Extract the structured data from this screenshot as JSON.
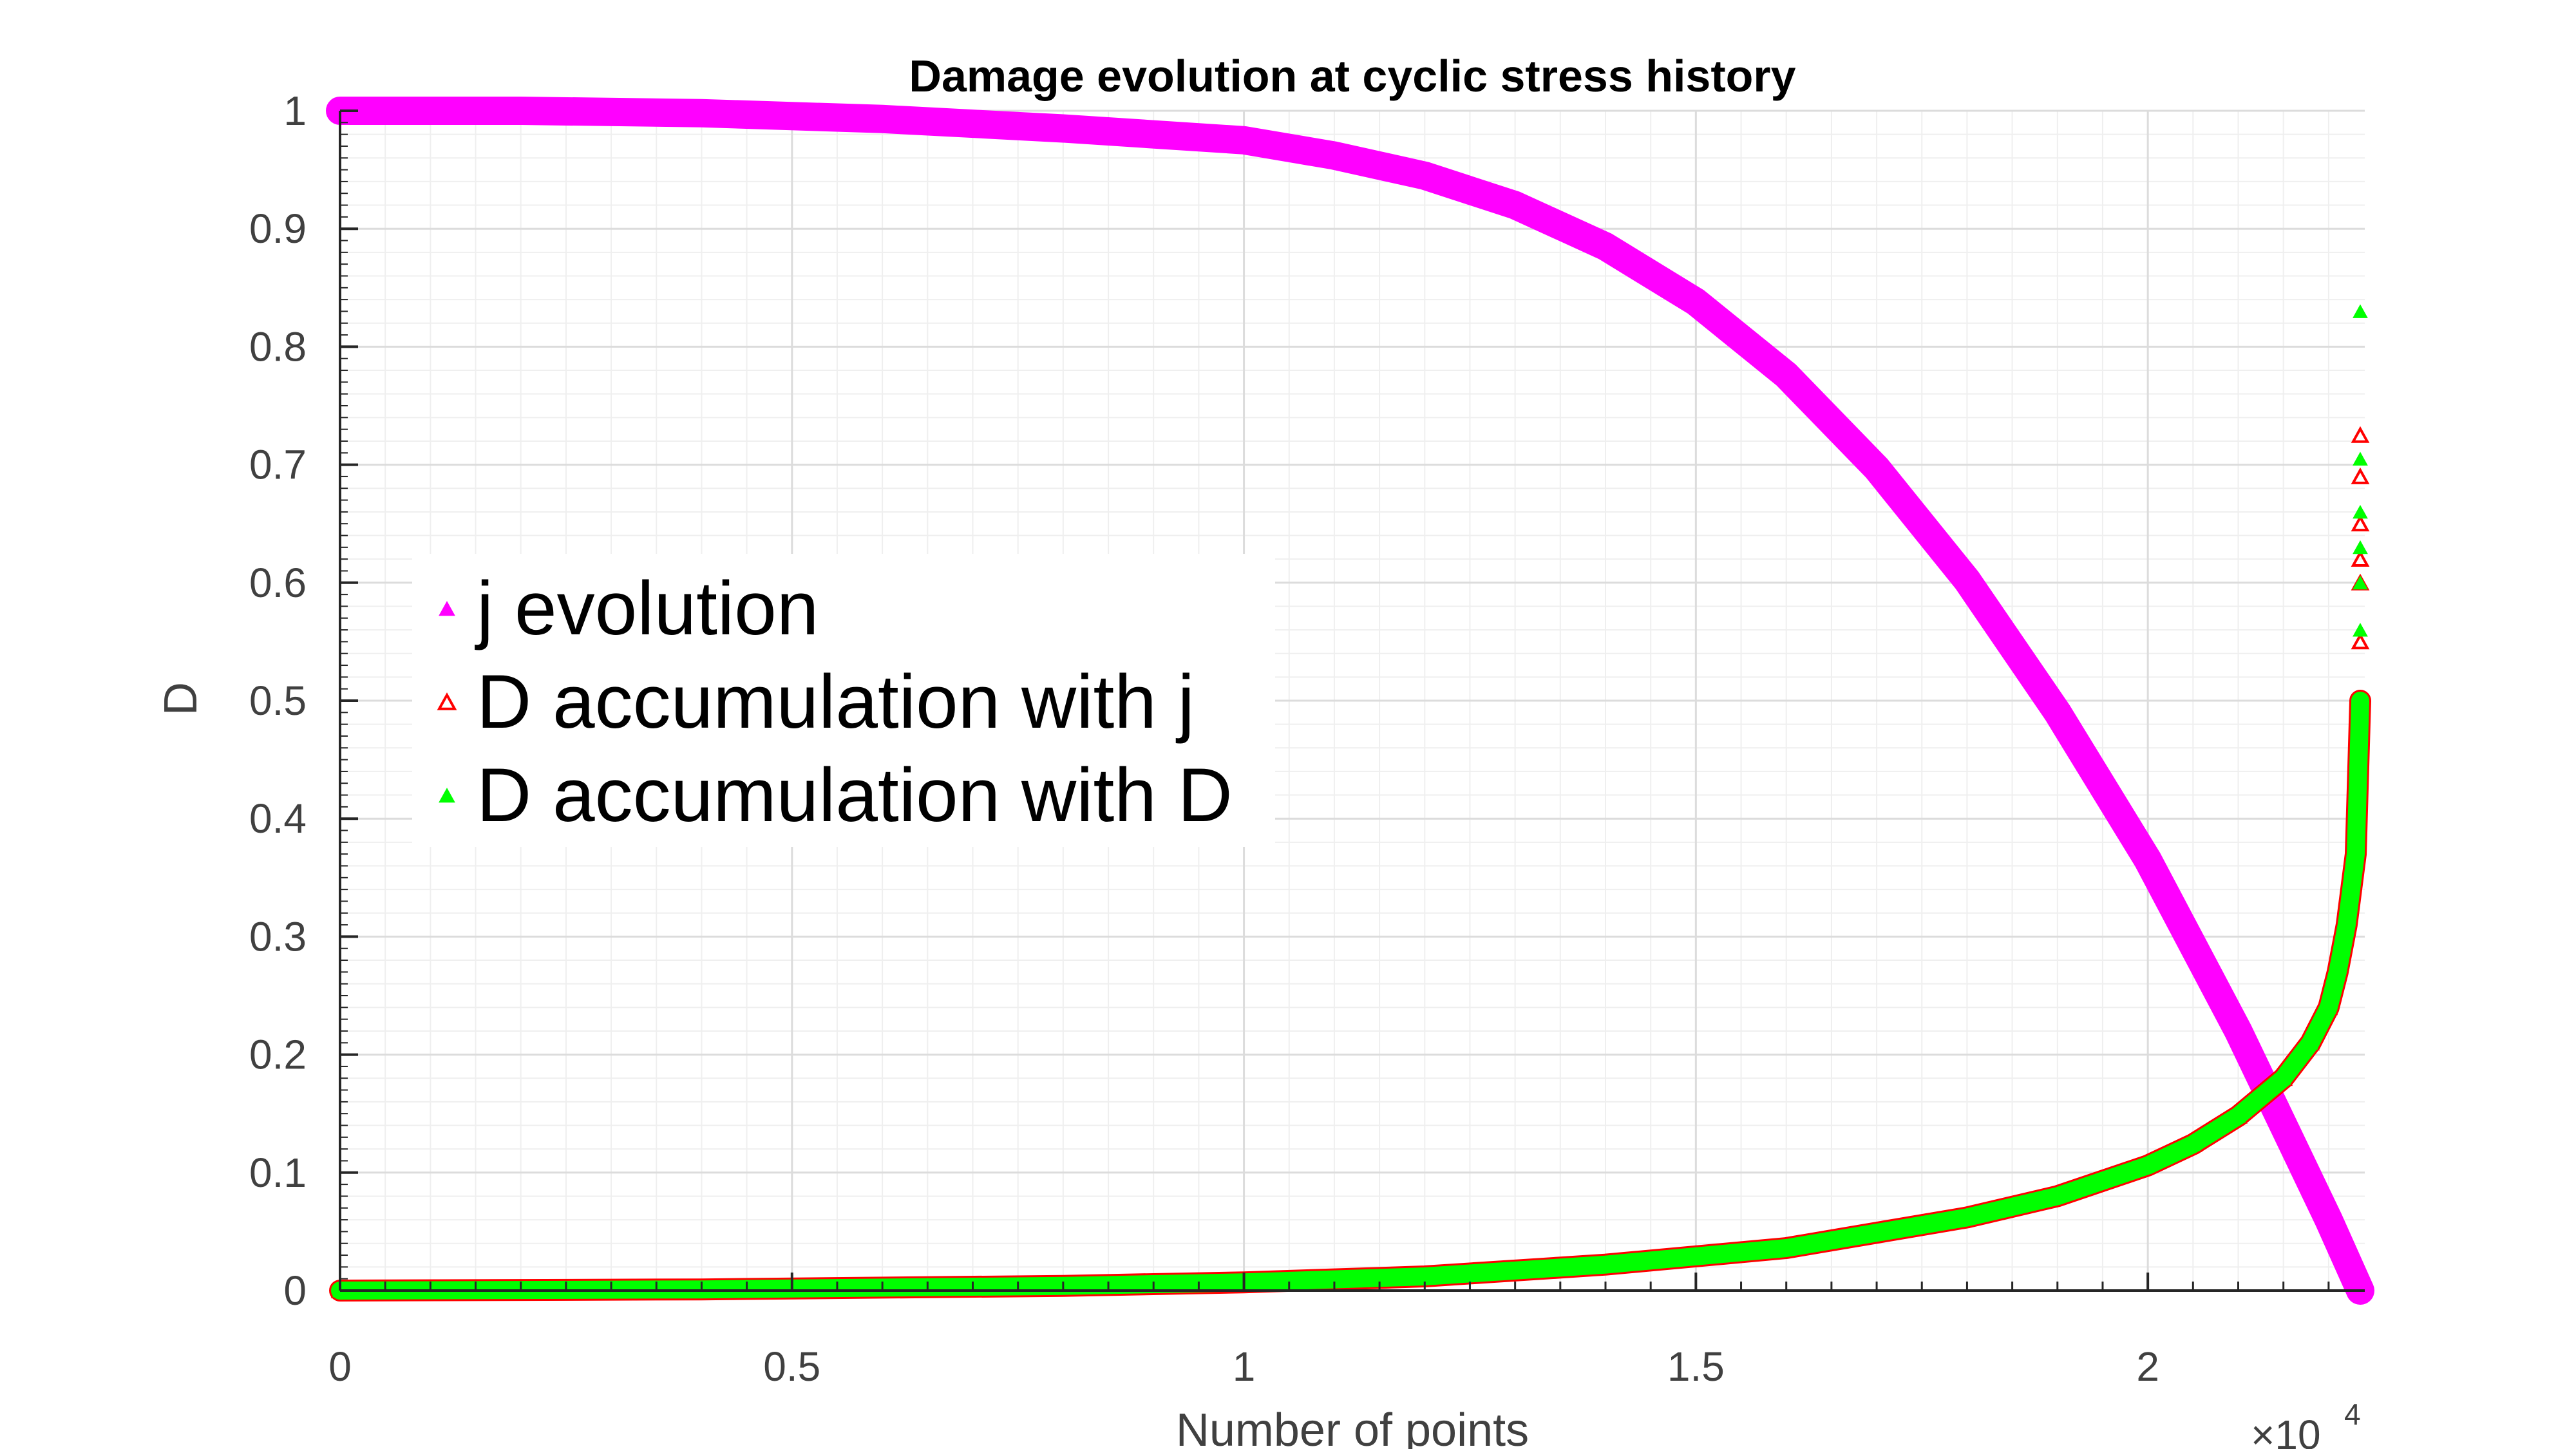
{
  "chart_data": {
    "type": "scatter",
    "title": "Damage evolution at cyclic stress history",
    "xlabel": "Number of points",
    "ylabel": "D",
    "x_multiplier": "×10",
    "x_multiplier_exponent": "4",
    "xlim": [
      0,
      2.24
    ],
    "ylim": [
      0,
      1
    ],
    "x_ticks": [
      0,
      0.5,
      1,
      1.5,
      2
    ],
    "x_tick_labels": [
      "0",
      "0.5",
      "1",
      "1.5",
      "2"
    ],
    "y_ticks": [
      0,
      0.1,
      0.2,
      0.3,
      0.4,
      0.5,
      0.6,
      0.7,
      0.8,
      0.9,
      1
    ],
    "y_tick_labels": [
      "0",
      "0.1",
      "0.2",
      "0.3",
      "0.4",
      "0.5",
      "0.6",
      "0.7",
      "0.8",
      "0.9",
      "1"
    ],
    "grid": true,
    "minor_grid": true,
    "legend_position": "middle-left",
    "series": [
      {
        "name": "j evolution",
        "color": "#ff00ff",
        "marker": "filled-triangle",
        "x": [
          0,
          0.2,
          0.4,
          0.6,
          0.8,
          1.0,
          1.1,
          1.2,
          1.3,
          1.4,
          1.5,
          1.6,
          1.7,
          1.8,
          1.9,
          2.0,
          2.1,
          2.15,
          2.2,
          2.235
        ],
        "y": [
          1.0,
          1.0,
          0.998,
          0.993,
          0.985,
          0.975,
          0.962,
          0.945,
          0.92,
          0.885,
          0.838,
          0.776,
          0.697,
          0.602,
          0.49,
          0.365,
          0.22,
          0.14,
          0.06,
          0.0
        ]
      },
      {
        "name": "D accumulation with j",
        "color": "#ff0000",
        "marker": "open-triangle",
        "x": [
          0,
          0.4,
          0.8,
          1.0,
          1.2,
          1.4,
          1.6,
          1.8,
          1.9,
          2.0,
          2.05,
          2.1,
          2.15,
          2.18,
          2.2,
          2.21,
          2.22,
          2.23,
          2.235,
          2.235,
          2.235,
          2.235,
          2.235,
          2.235,
          2.235
        ],
        "y": [
          0.0,
          0.001,
          0.004,
          0.007,
          0.012,
          0.022,
          0.036,
          0.062,
          0.08,
          0.106,
          0.124,
          0.148,
          0.18,
          0.21,
          0.24,
          0.27,
          0.31,
          0.37,
          0.5,
          0.55,
          0.6,
          0.62,
          0.65,
          0.69,
          0.725
        ]
      },
      {
        "name": "D accumulation with D",
        "color": "#00ff00",
        "marker": "filled-triangle",
        "x": [
          0,
          0.4,
          0.8,
          1.0,
          1.2,
          1.4,
          1.6,
          1.8,
          1.9,
          2.0,
          2.05,
          2.1,
          2.15,
          2.18,
          2.2,
          2.21,
          2.22,
          2.23,
          2.235,
          2.235,
          2.235,
          2.235,
          2.235,
          2.235,
          2.235
        ],
        "y": [
          0.0,
          0.001,
          0.004,
          0.007,
          0.012,
          0.022,
          0.036,
          0.062,
          0.08,
          0.106,
          0.124,
          0.148,
          0.18,
          0.21,
          0.24,
          0.27,
          0.31,
          0.37,
          0.5,
          0.56,
          0.6,
          0.63,
          0.66,
          0.705,
          0.83
        ]
      }
    ]
  }
}
